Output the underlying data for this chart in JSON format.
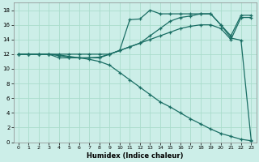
{
  "xlabel": "Humidex (Indice chaleur)",
  "bg_color": "#cceee8",
  "grid_color": "#aaddcc",
  "line_color": "#1a6e64",
  "xlim": [
    -0.5,
    23.5
  ],
  "ylim": [
    0,
    19
  ],
  "xticks": [
    0,
    1,
    2,
    3,
    4,
    5,
    6,
    7,
    8,
    9,
    10,
    11,
    12,
    13,
    14,
    15,
    16,
    17,
    18,
    19,
    20,
    21,
    22,
    23
  ],
  "yticks": [
    0,
    2,
    4,
    6,
    8,
    10,
    12,
    14,
    16,
    18
  ],
  "curveA_x": [
    0,
    1,
    2,
    3,
    4,
    5,
    6,
    7,
    8,
    9,
    10,
    11,
    12,
    13,
    14,
    15,
    16,
    17,
    18,
    19,
    20,
    21,
    22,
    23
  ],
  "curveA_y": [
    12,
    12,
    12,
    12,
    11.5,
    11.5,
    11.5,
    11.5,
    11.5,
    12,
    12.5,
    16.7,
    16.8,
    18.0,
    17.5,
    17.5,
    17.5,
    17.5,
    17.5,
    17.5,
    16.0,
    14.2,
    13.9,
    0.3
  ],
  "curveB_x": [
    0,
    1,
    2,
    3,
    4,
    5,
    6,
    7,
    8,
    9,
    10,
    11,
    12,
    13,
    14,
    15,
    16,
    17,
    18,
    19,
    20,
    21,
    22,
    23
  ],
  "curveB_y": [
    12,
    12,
    12,
    12,
    11.8,
    11.6,
    11.5,
    11.5,
    11.6,
    12,
    12.5,
    13.0,
    13.5,
    14.5,
    15.5,
    16.5,
    17.0,
    17.2,
    17.5,
    17.5,
    16.0,
    14.5,
    17.3,
    17.3
  ],
  "curveC_x": [
    0,
    1,
    2,
    3,
    4,
    5,
    6,
    7,
    8,
    9,
    10,
    11,
    12,
    13,
    14,
    15,
    16,
    17,
    18,
    19,
    20,
    21,
    22,
    23
  ],
  "curveC_y": [
    12,
    12,
    12,
    12,
    12,
    12,
    12,
    12,
    12,
    12,
    12.5,
    13.0,
    13.5,
    14.0,
    14.5,
    15.0,
    15.5,
    15.8,
    16.0,
    16.0,
    15.5,
    14.0,
    17.0,
    17.0
  ],
  "curveD_x": [
    0,
    1,
    2,
    3,
    4,
    5,
    6,
    7,
    8,
    9,
    10,
    11,
    12,
    13,
    14,
    15,
    16,
    17,
    18,
    19,
    20,
    21,
    22,
    23
  ],
  "curveD_y": [
    12,
    12,
    12,
    12,
    11.9,
    11.7,
    11.5,
    11.3,
    11.0,
    10.5,
    9.5,
    8.5,
    7.5,
    6.5,
    5.5,
    4.8,
    4.0,
    3.2,
    2.5,
    1.8,
    1.2,
    0.8,
    0.4,
    0.2
  ]
}
